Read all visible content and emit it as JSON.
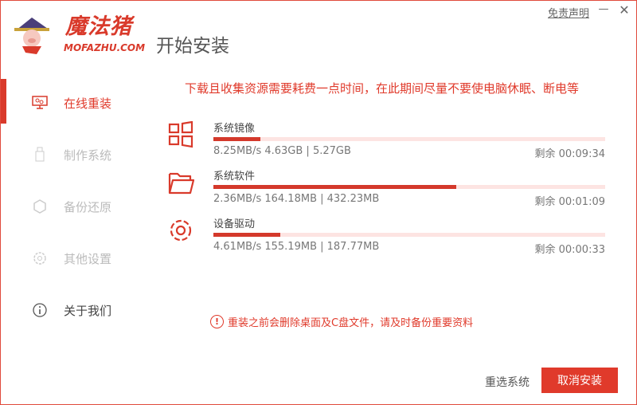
{
  "brand": {
    "name": "魔法猪",
    "url": "MOFAZHU.COM"
  },
  "header": {
    "title": "开始安装",
    "disclaimer": "免责声明",
    "minimize": "—",
    "close": "✕"
  },
  "sidebar": {
    "items": [
      {
        "label": "在线重装",
        "icon": "monitor-icon",
        "active": true
      },
      {
        "label": "制作系统",
        "icon": "usb-icon"
      },
      {
        "label": "备份还原",
        "icon": "backup-icon"
      },
      {
        "label": "其他设置",
        "icon": "gear-icon"
      },
      {
        "label": "关于我们",
        "icon": "info-icon"
      }
    ]
  },
  "notice": "下载且收集资源需要耗费一点时间，在此期间尽量不要使电脑休眠、断电等",
  "tasks": [
    {
      "name": "系统镜像",
      "icon": "windows-icon",
      "stats": "8.25MB/s 4.63GB | 5.27GB",
      "remaining": "剩余 00:09:34",
      "progress": 12
    },
    {
      "name": "系统软件",
      "icon": "folder-icon",
      "stats": "2.36MB/s 164.18MB | 432.23MB",
      "remaining": "剩余 00:01:09",
      "progress": 62
    },
    {
      "name": "设备驱动",
      "icon": "gear-icon",
      "stats": "4.61MB/s 155.19MB | 187.77MB",
      "remaining": "剩余 00:00:33",
      "progress": 17
    }
  ],
  "warning": {
    "icon": "!",
    "text": "重装之前会删除桌面及C盘文件，请及时备份重要资料"
  },
  "footer": {
    "reselect": "重选系统",
    "cancel": "取消安装"
  },
  "colors": {
    "accent": "#e03a2b",
    "track": "#fde4e2"
  }
}
